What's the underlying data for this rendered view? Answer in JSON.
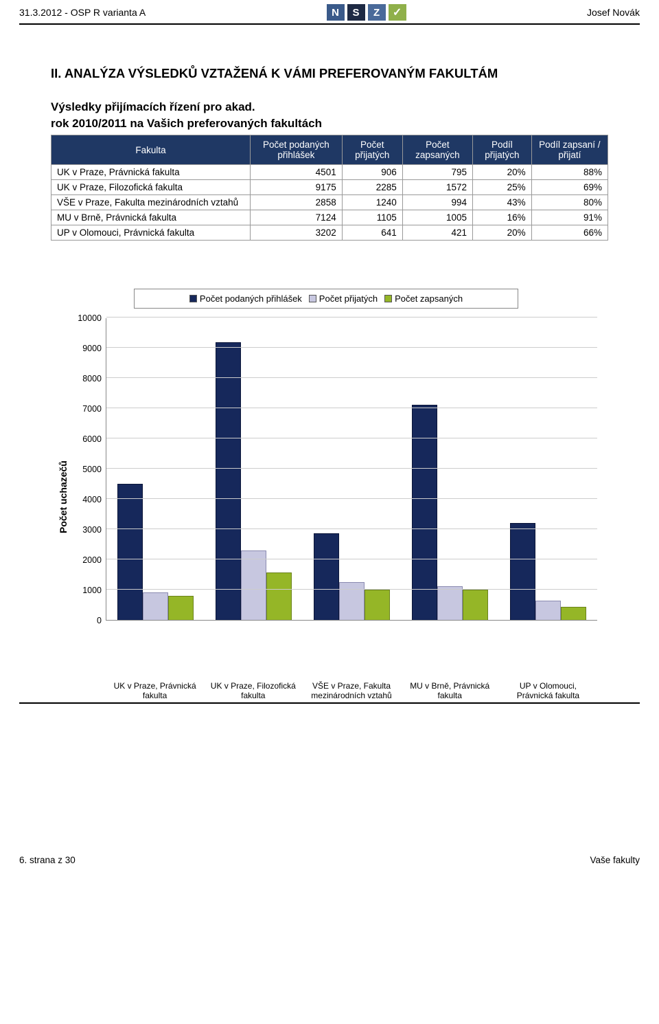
{
  "header": {
    "left": "31.3.2012 - OSP R varianta A",
    "right": "Josef Novák",
    "logo_letters": [
      "N",
      "S",
      "Z"
    ],
    "logo_check": "✓"
  },
  "title": "II. ANALÝZA VÝSLEDKŮ VZTAŽENÁ K VÁMI PREFEROVANÝM FAKULTÁM",
  "subhead1": "Výsledky přijímacích řízení pro akad.",
  "subhead2": "rok 2010/2011 na Vašich preferovaných fakultách",
  "table": {
    "columns": [
      "Fakulta",
      "Počet podaných přihlášek",
      "Počet přijatých",
      "Počet zapsaných",
      "Podíl přijatých",
      "Podíl zapsaní / přijatí"
    ],
    "rows": [
      [
        "UK v Praze, Právnická fakulta",
        "4501",
        "906",
        "795",
        "20%",
        "88%"
      ],
      [
        "UK v Praze, Filozofická fakulta",
        "9175",
        "2285",
        "1572",
        "25%",
        "69%"
      ],
      [
        "VŠE v Praze, Fakulta mezinárodních vztahů",
        "2858",
        "1240",
        "994",
        "43%",
        "80%"
      ],
      [
        "MU v Brně, Právnická fakulta",
        "7124",
        "1105",
        "1005",
        "16%",
        "91%"
      ],
      [
        "UP v Olomouci, Právnická fakulta",
        "3202",
        "641",
        "421",
        "20%",
        "66%"
      ]
    ],
    "col_widths": [
      "290px",
      "auto",
      "auto",
      "auto",
      "auto",
      "auto"
    ],
    "header_bg": "#1f3864",
    "header_color": "#ffffff",
    "border_color": "#999999",
    "fontsize": 13.5
  },
  "chart": {
    "type": "grouped-bar",
    "legend": [
      {
        "label": "Počet podaných přihlášek",
        "color": "#16285b"
      },
      {
        "label": "Počet přijatých",
        "color": "#c7c7e0"
      },
      {
        "label": "Počet zapsaných",
        "color": "#95b627"
      }
    ],
    "ylabel": "Počet uchazečů",
    "ylim": [
      0,
      10000
    ],
    "ytick_step": 1000,
    "yticks": [
      0,
      1000,
      2000,
      3000,
      4000,
      5000,
      6000,
      7000,
      8000,
      9000,
      10000
    ],
    "grid_color": "#cccccc",
    "background_color": "#ffffff",
    "categories": [
      "UK v Praze, Právnická fakulta",
      "UK v Praze, Filozofická fakulta",
      "VŠE v Praze, Fakulta mezinárodních vztahů",
      "MU v Brně, Právnická fakulta",
      "UP v Olomouci, Právnická fakulta"
    ],
    "series": [
      {
        "name": "Počet podaných přihlášek",
        "color": "#16285b",
        "border": "#0a1538",
        "values": [
          4501,
          9175,
          2858,
          7124,
          3202
        ]
      },
      {
        "name": "Počet přijatých",
        "color": "#c7c7e0",
        "border": "#8a8ab0",
        "values": [
          906,
          2285,
          1240,
          1105,
          641
        ]
      },
      {
        "name": "Počet zapsaných",
        "color": "#95b627",
        "border": "#6a821b",
        "values": [
          795,
          1572,
          994,
          1005,
          421
        ]
      }
    ],
    "label_fontsize": 12,
    "title_fontsize": 13,
    "bar_group_gap": 16
  },
  "footer": {
    "left": "6. strana z 30",
    "right": "Vaše fakulty"
  }
}
